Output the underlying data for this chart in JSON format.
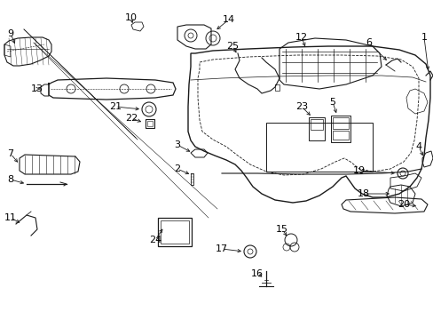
{
  "bg_color": "#ffffff",
  "fig_width": 4.89,
  "fig_height": 3.6,
  "dpi": 100,
  "font_size": 8,
  "text_color": "#000000",
  "lw": 0.7
}
